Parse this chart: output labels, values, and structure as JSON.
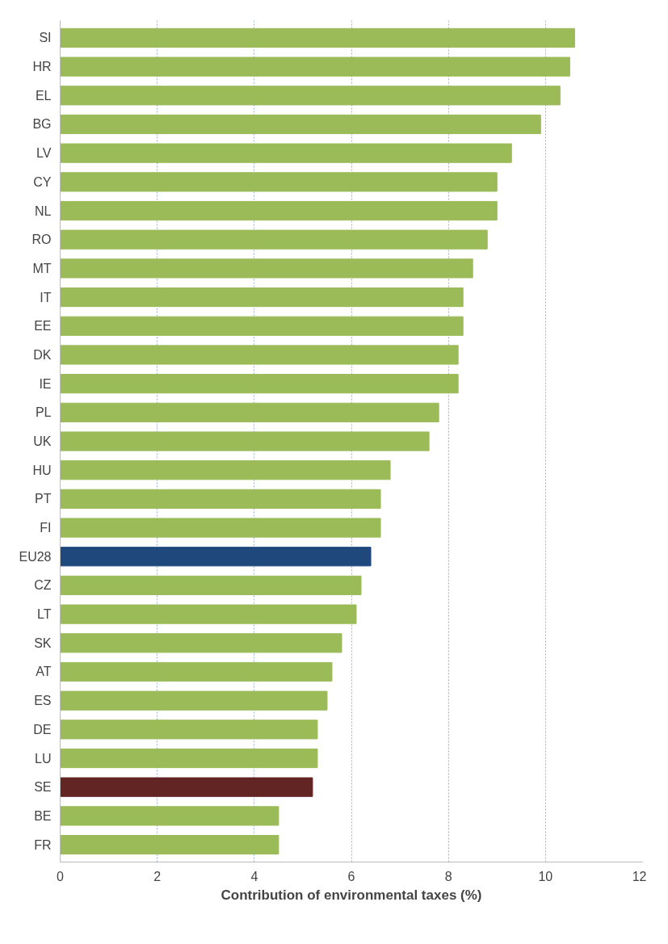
{
  "chart_data": {
    "type": "bar",
    "orientation": "horizontal",
    "xlabel": "Contribution of environmental taxes (%)",
    "categories": [
      "SI",
      "HR",
      "EL",
      "BG",
      "LV",
      "CY",
      "NL",
      "RO",
      "MT",
      "IT",
      "EE",
      "DK",
      "IE",
      "PL",
      "UK",
      "HU",
      "PT",
      "FI",
      "EU28",
      "CZ",
      "LT",
      "SK",
      "AT",
      "ES",
      "DE",
      "LU",
      "SE",
      "BE",
      "FR"
    ],
    "values": [
      10.6,
      10.5,
      10.3,
      9.9,
      9.3,
      9.0,
      9.0,
      8.8,
      8.5,
      8.3,
      8.3,
      8.2,
      8.2,
      7.8,
      7.6,
      6.8,
      6.6,
      6.6,
      6.4,
      6.2,
      6.1,
      5.8,
      5.6,
      5.5,
      5.3,
      5.3,
      5.2,
      4.5,
      4.5
    ],
    "colors": [
      "#9bbb59",
      "#9bbb59",
      "#9bbb59",
      "#9bbb59",
      "#9bbb59",
      "#9bbb59",
      "#9bbb59",
      "#9bbb59",
      "#9bbb59",
      "#9bbb59",
      "#9bbb59",
      "#9bbb59",
      "#9bbb59",
      "#9bbb59",
      "#9bbb59",
      "#9bbb59",
      "#9bbb59",
      "#9bbb59",
      "#1f497d",
      "#9bbb59",
      "#9bbb59",
      "#9bbb59",
      "#9bbb59",
      "#9bbb59",
      "#9bbb59",
      "#9bbb59",
      "#632523",
      "#9bbb59",
      "#9bbb59"
    ],
    "xlim": [
      0,
      12
    ],
    "xticks": [
      0,
      2,
      4,
      6,
      8,
      10,
      12
    ],
    "grid": "x"
  }
}
